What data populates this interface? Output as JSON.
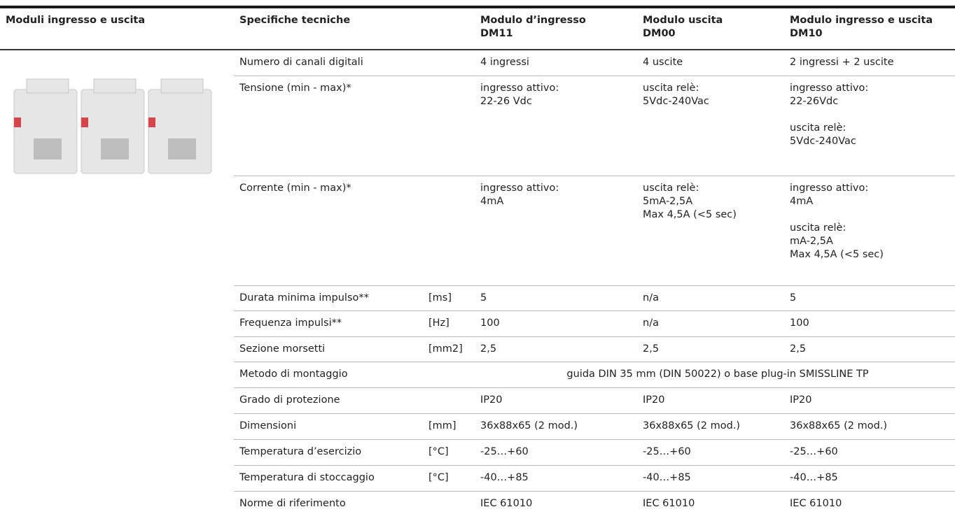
{
  "header": {
    "section": "Moduli ingresso e uscita",
    "specs": "Specifiche tecniche",
    "modules": [
      [
        "Modulo d’ingresso",
        "DM11"
      ],
      [
        "Modulo uscita",
        "DM00"
      ],
      [
        "Modulo ingresso e uscita",
        "DM10"
      ]
    ]
  },
  "table": {
    "rows": [
      {
        "label": "Numero di canali digitali",
        "cells": [
          "4 ingressi",
          "4 uscite",
          "2 ingressi + 2 uscite"
        ]
      },
      {
        "label": "Tensione (min - max)*",
        "cells": [
          [
            "ingresso attivo:\n22-26 Vdc"
          ],
          [
            "uscita relè:\n5Vdc-240Vac"
          ],
          [
            "ingresso attivo:\n22-26Vdc",
            "uscita relè:\n5Vdc-240Vac"
          ]
        ]
      },
      {
        "label": "Corrente (min - max)*",
        "cells": [
          [
            "ingresso attivo:\n4mA"
          ],
          [
            "uscita relè:\n5mA-2,5A\nMax 4,5A (<5 sec)"
          ],
          [
            "ingresso attivo:\n4mA",
            "uscita relè:\nmA-2,5A\nMax 4,5A (<5 sec)"
          ]
        ]
      },
      {
        "label": "Durata minima impulso**",
        "unit": "[ms]",
        "cells": [
          "5",
          "n/a",
          "5"
        ]
      },
      {
        "label": "Frequenza impulsi**",
        "unit": "[Hz]",
        "cells": [
          "100",
          "n/a",
          "100"
        ]
      },
      {
        "label": "Sezione morsetti",
        "unit": "[mm2]",
        "cells": [
          "2,5",
          " 2,5",
          "2,5"
        ]
      },
      {
        "label": "Metodo di montaggio",
        "cells": [
          "guida DIN 35 mm (DIN 50022) o base plug-in SMISSLINE TP"
        ]
      },
      {
        "label": "Grado di protezione",
        "cells": [
          "IP20",
          "IP20",
          "IP20"
        ]
      },
      {
        "label": "Dimensioni",
        "unit": "[mm]",
        "cells": [
          "36x88x65 (2 mod.)",
          "36x88x65 (2 mod.)",
          "36x88x65 (2 mod.)"
        ]
      },
      {
        "label": "Temperatura d’esercizio",
        "unit": "[°C]",
        "cells": [
          "-25…+60",
          "-25…+60",
          "-25…+60"
        ]
      },
      {
        "label": "Temperatura di stoccaggio",
        "unit": "[°C]",
        "cells": [
          "-40…+85",
          "-40…+85",
          "-40…+85"
        ]
      },
      {
        "label": "Norme di riferimento",
        "cells": [
          "IEC 61010",
          "IEC 61010",
          "IEC 61010"
        ]
      }
    ]
  }
}
